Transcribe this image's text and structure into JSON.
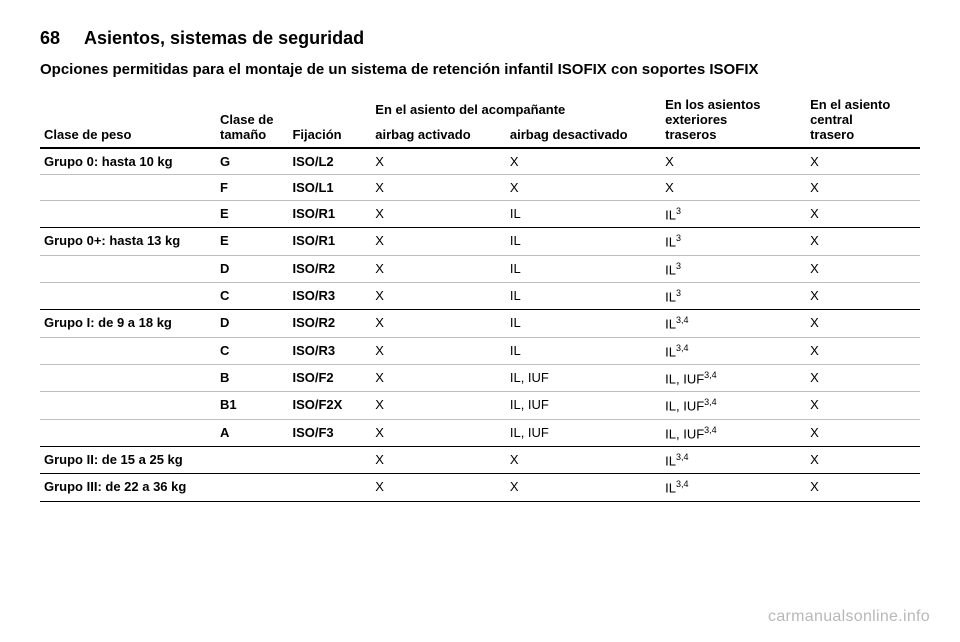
{
  "page": {
    "number": "68",
    "section": "Asientos, sistemas de seguridad",
    "intro": "Opciones permitidas para el montaje de un sistema de retención infantil ISOFIX con soportes ISOFIX"
  },
  "headers": {
    "weight_class": "Clase de peso",
    "size_class": "Clase de\ntamaño",
    "fixation": "Fijación",
    "passenger_span": "En el asiento del acompañante",
    "airbag_on": "airbag activado",
    "airbag_off": "airbag desactivado",
    "rear_outer": "En los asientos\nexteriores\ntraseros",
    "rear_center": "En el asiento\ncentral\ntrasero"
  },
  "rows": [
    {
      "group": "Grupo 0: hasta 10 kg",
      "size": "G",
      "fix": "ISO/L2",
      "on": "X",
      "off": "X",
      "outer": "X",
      "center": "X"
    },
    {
      "group": "",
      "size": "F",
      "fix": "ISO/L1",
      "on": "X",
      "off": "X",
      "outer": "X",
      "center": "X"
    },
    {
      "group": "",
      "size": "E",
      "fix": "ISO/R1",
      "on": "X",
      "off": "IL",
      "outer": "IL<sup>3</sup>",
      "center": "X",
      "end": true
    },
    {
      "group": "Grupo 0+: hasta 13 kg",
      "size": "E",
      "fix": "ISO/R1",
      "on": "X",
      "off": "IL",
      "outer": "IL<sup>3</sup>",
      "center": "X"
    },
    {
      "group": "",
      "size": "D",
      "fix": "ISO/R2",
      "on": "X",
      "off": "IL",
      "outer": "IL<sup>3</sup>",
      "center": "X"
    },
    {
      "group": "",
      "size": "C",
      "fix": "ISO/R3",
      "on": "X",
      "off": "IL",
      "outer": "IL<sup>3</sup>",
      "center": "X",
      "end": true
    },
    {
      "group": "Grupo I: de 9 a 18 kg",
      "size": "D",
      "fix": "ISO/R2",
      "on": "X",
      "off": "IL",
      "outer": "IL<sup>3,4</sup>",
      "center": "X"
    },
    {
      "group": "",
      "size": "C",
      "fix": "ISO/R3",
      "on": "X",
      "off": "IL",
      "outer": "IL<sup>3,4</sup>",
      "center": "X"
    },
    {
      "group": "",
      "size": "B",
      "fix": "ISO/F2",
      "on": "X",
      "off": "IL, IUF",
      "outer": "IL, IUF<sup>3,4</sup>",
      "center": "X"
    },
    {
      "group": "",
      "size": "B1",
      "fix": "ISO/F2X",
      "on": "X",
      "off": "IL, IUF",
      "outer": "IL, IUF<sup>3,4</sup>",
      "center": "X"
    },
    {
      "group": "",
      "size": "A",
      "fix": "ISO/F3",
      "on": "X",
      "off": "IL, IUF",
      "outer": "IL, IUF<sup>3,4</sup>",
      "center": "X",
      "end": true
    },
    {
      "group": "Grupo II: de 15 a 25 kg",
      "size": "",
      "fix": "",
      "on": "X",
      "off": "X",
      "outer": "IL<sup>3,4</sup>",
      "center": "X",
      "end": true
    },
    {
      "group": "Grupo III: de 22 a 36 kg",
      "size": "",
      "fix": "",
      "on": "X",
      "off": "X",
      "outer": "IL<sup>3,4</sup>",
      "center": "X",
      "end": true
    }
  ],
  "watermark": "carmanualsonline.info",
  "colors": {
    "text": "#000000",
    "bg": "#ffffff",
    "rule_dark": "#000000",
    "rule_light": "#bfbfbf",
    "watermark": "#b8b8b8"
  },
  "fontsize": {
    "header": 18,
    "intro": 15,
    "body": 13,
    "sup": 9
  }
}
